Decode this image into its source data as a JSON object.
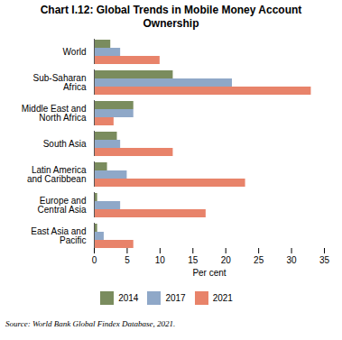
{
  "chart_data": {
    "type": "bar",
    "orientation": "horizontal",
    "title": "Chart I.12: Global Trends in Mobile Money Account\nOwnership",
    "categories": [
      "World",
      "Sub-Saharan\nAfrica",
      "Middle East and\nNorth Africa",
      "South Asia",
      "Latin America\nand Caribbean",
      "Europe and\nCentral Asia",
      "East Asia and\nPacific"
    ],
    "series": [
      {
        "name": "2014",
        "color": "#7a8c5e",
        "values": [
          2.5,
          12.0,
          6.0,
          3.5,
          2.0,
          0.5,
          0.5
        ]
      },
      {
        "name": "2017",
        "color": "#8fa8c8",
        "values": [
          4.0,
          21.0,
          6.0,
          4.0,
          5.0,
          4.0,
          1.5
        ]
      },
      {
        "name": "2021",
        "color": "#e8836a",
        "values": [
          10.0,
          33.0,
          3.0,
          12.0,
          23.0,
          17.0,
          6.0
        ]
      }
    ],
    "xlabel": "Per cent",
    "xlim": [
      0,
      35
    ],
    "xticks": [
      0,
      5,
      10,
      15,
      20,
      25,
      30,
      35
    ],
    "grid": false,
    "legend": "bottom",
    "annotations": [
      "Source: World Bank Global Findex Database, 2021."
    ]
  }
}
